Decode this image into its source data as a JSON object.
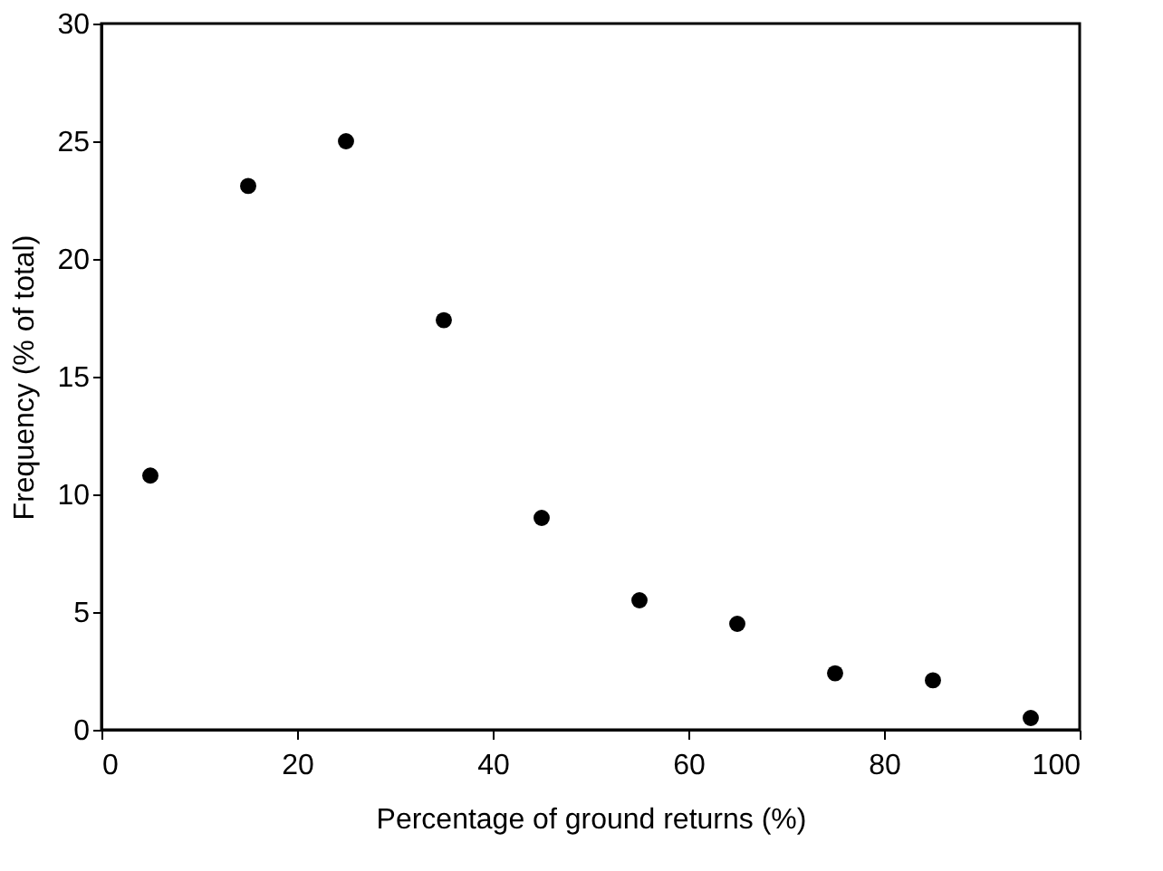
{
  "chart_data": {
    "type": "scatter",
    "xlabel": "Percentage of ground returns (%)",
    "ylabel": "Frequency (% of total)",
    "x": [
      5,
      15,
      25,
      35,
      45,
      55,
      65,
      75,
      85,
      95
    ],
    "series": [
      {
        "color": "#000000",
        "values": [
          10.8,
          23.1,
          25.0,
          17.4,
          9.0,
          5.5,
          4.5,
          2.4,
          2.1,
          0.5
        ]
      }
    ],
    "xlim": [
      0,
      100
    ],
    "xticks": [
      0,
      20,
      40,
      60,
      80,
      100
    ],
    "ylim": [
      0,
      30
    ],
    "yticks": [
      0,
      5,
      10,
      15,
      20,
      25,
      30
    ],
    "grid": false,
    "marker": "circle"
  }
}
